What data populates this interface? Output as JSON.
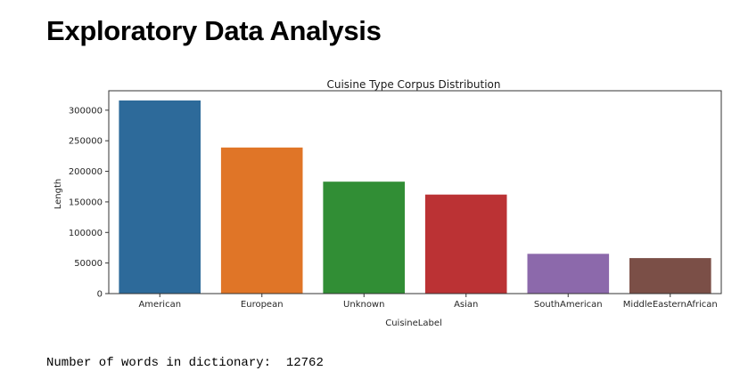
{
  "page": {
    "heading": "Exploratory Data Analysis",
    "output_text": "Number of words in dictionary:  12762"
  },
  "chart_data": {
    "type": "bar",
    "title": "Cuisine Type Corpus Distribution",
    "xlabel": "CuisineLabel",
    "ylabel": "Length",
    "categories": [
      "American",
      "European",
      "Unknown",
      "Asian",
      "SouthAmerican",
      "MiddleEasternAfrican"
    ],
    "values": [
      316000,
      239000,
      183000,
      162000,
      65000,
      58000
    ],
    "colors": [
      "#2d6a9a",
      "#e07527",
      "#318e35",
      "#bb3234",
      "#8c69ab",
      "#7b4f47"
    ],
    "yticks": [
      0,
      50000,
      100000,
      150000,
      200000,
      250000,
      300000
    ],
    "ylim": [
      0,
      331800
    ],
    "grid": false,
    "legend": false
  }
}
